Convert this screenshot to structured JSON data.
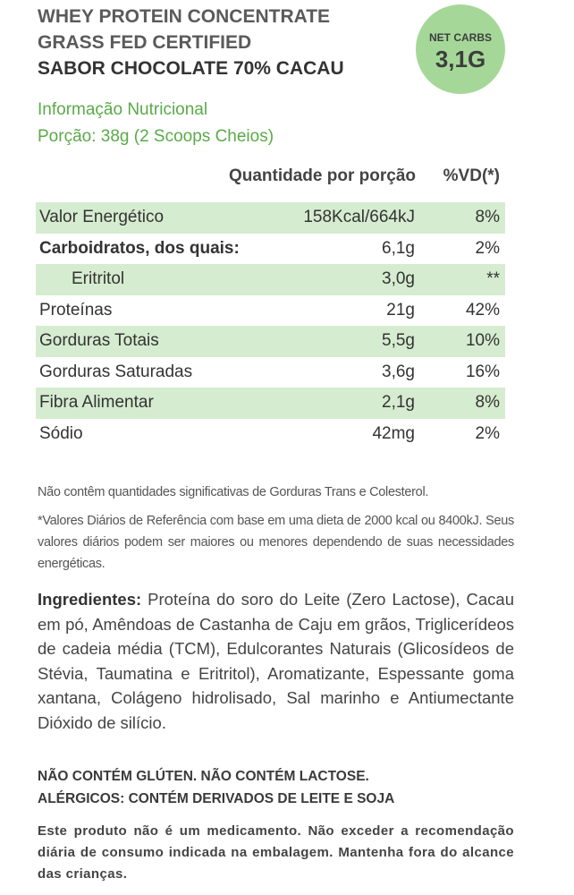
{
  "header": {
    "lines": [
      "WHEY PROTEIN CONCENTRATE",
      "GRASS FED CERTIFIED",
      "SABOR CHOCOLATE 70% CACAU"
    ],
    "badge": {
      "label": "NET CARBS",
      "value": "3,1G"
    }
  },
  "subtitle": {
    "title": "Informação Nutricional",
    "serving": "Porção: 38g (2 Scoops Cheios)"
  },
  "table": {
    "columns": [
      "Quantidade por porção",
      "%VD(*)"
    ],
    "rows": [
      [
        "Valor Energético",
        "158Kcal/664kJ",
        "8%"
      ],
      [
        "Carboidratos, dos quais:",
        "6,1g",
        "2%"
      ],
      [
        "Eritritol",
        "3,0g",
        "**"
      ],
      [
        "Proteínas",
        "21g",
        "42%"
      ],
      [
        "Gorduras Totais",
        "5,5g",
        "10%"
      ],
      [
        "Gorduras Saturadas",
        "3,6g",
        "16%"
      ],
      [
        "Fibra Alimentar",
        "2,1g",
        "8%"
      ],
      [
        "Sódio",
        "42mg",
        "2%"
      ]
    ]
  },
  "notes": [
    "Não contêm quantidades significativas de Gorduras Trans e Colesterol.",
    "*Valores Diários de Referência com base em uma dieta de 2000 kcal ou 8400kJ. Seus valores diários podem ser maiores ou menores dependendo de suas necessidades energéticas."
  ],
  "ingredients": {
    "label": "Ingredientes:",
    "text": "Proteína do soro do Leite (Zero Lactose), Cacau em pó, Amêndoas de Castanha de Caju em grãos, Triglicerídeos de cadeia média (TCM), Edulcorantes Naturais (Glicosídeos de Stévia, Taumatina e Eritritol), Aromatizante, Espessante goma xantana, Colágeno hidrolisado, Sal marinho e Antiumectante Dióxido de silício."
  },
  "warnings": [
    "NÃO CONTÉM GLÚTEN. NÃO CONTÉM LACTOSE.",
    "ALÉRGICOS: CONTÉM DERIVADOS DE LEITE E SOJA"
  ],
  "disclaimer": "Este produto não é um medicamento. Não exceder a recomendação diária de consumo indicada na embalagem. Mantenha fora do alcance das crianças."
}
